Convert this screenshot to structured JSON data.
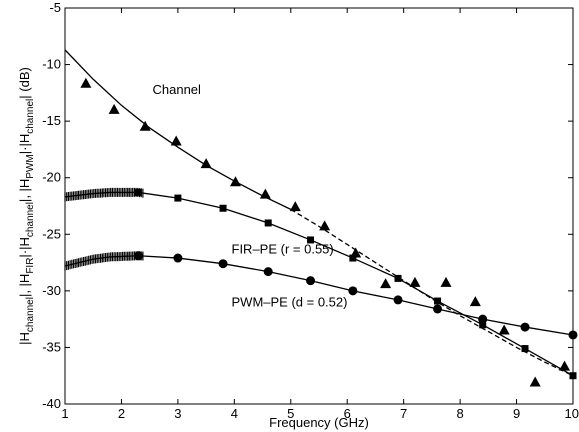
{
  "chart_data": {
    "type": "line",
    "xlabel": "Frequency (GHz)",
    "ylabel_parts": [
      "|H",
      "channel",
      "|, |H",
      "FIR",
      "|·|H",
      "channel",
      "|, |H",
      "PWM",
      "|·|H",
      "channel",
      "|  (dB)"
    ],
    "xlim": [
      1,
      10
    ],
    "ylim": [
      -40,
      -5
    ],
    "xticks": [
      "1",
      "2",
      "3",
      "4",
      "5",
      "6",
      "7",
      "8",
      "9",
      "10"
    ],
    "yticks": [
      "-5",
      "-10",
      "-15",
      "-20",
      "-25",
      "-30",
      "-35",
      "-40"
    ],
    "grid": false,
    "annotations": [
      {
        "text": "Channel",
        "x": 2.55,
        "y": -12.6
      },
      {
        "text": "FIR–PE (r = 0.55)",
        "x": 3.95,
        "y": -26.7
      },
      {
        "text": "PWM–PE (d = 0.52)",
        "x": 3.95,
        "y": -31.4
      }
    ],
    "series": [
      {
        "style": "solid-line",
        "x": [
          1,
          1.5,
          2,
          2.5,
          3,
          3.5,
          4,
          4.5,
          5
        ],
        "y": [
          -8.7,
          -11.3,
          -13.6,
          -15.6,
          -17.3,
          -18.9,
          -20.3,
          -21.6,
          -22.8
        ]
      },
      {
        "style": "dashed-line",
        "x": [
          5,
          5.5,
          6,
          6.5,
          7,
          7.5,
          8,
          8.5,
          9,
          9.5,
          10
        ],
        "y": [
          -22.8,
          -24.3,
          -25.9,
          -27.5,
          -29.1,
          -30.7,
          -32.2,
          -33.6,
          -35.0,
          -36.3,
          -37.5
        ]
      },
      {
        "style": "triangle-markers",
        "x": [
          1.37,
          1.87,
          2.42,
          2.97,
          3.5,
          4.02,
          4.55,
          5.08,
          5.6,
          6.15,
          6.68,
          7.2,
          7.75,
          8.27,
          8.78,
          9.33,
          9.85
        ],
        "y": [
          -11.7,
          -14.0,
          -15.5,
          -16.8,
          -18.8,
          -20.4,
          -21.5,
          -22.6,
          -24.3,
          -26.7,
          -29.4,
          -29.3,
          -29.3,
          -31.0,
          -33.5,
          -38.1,
          -36.7
        ]
      },
      {
        "style": "line-with-squares",
        "x": [
          1,
          1.5,
          1.8,
          2.3,
          3.0,
          3.8,
          4.6,
          5.35,
          6.1,
          6.9,
          7.6,
          8.4,
          9.15,
          10
        ],
        "y": [
          -21.7,
          -21.4,
          -21.3,
          -21.3,
          -21.8,
          -22.7,
          -24.0,
          -25.5,
          -27.1,
          -28.9,
          -30.9,
          -33.0,
          -35.1,
          -37.5
        ],
        "markers_x": [
          2.3,
          3.0,
          3.8,
          4.6,
          5.35,
          6.1,
          6.9,
          7.6,
          8.4,
          9.15,
          10
        ],
        "jagged_start": 1.0,
        "jagged_end": 2.4
      },
      {
        "style": "line-with-circles",
        "x": [
          1,
          1.5,
          1.8,
          2.3,
          3.0,
          3.8,
          4.6,
          5.35,
          6.1,
          6.9,
          7.6,
          8.4,
          9.15,
          10
        ],
        "y": [
          -27.8,
          -27.2,
          -27.0,
          -26.9,
          -27.1,
          -27.6,
          -28.3,
          -29.1,
          -30.0,
          -30.8,
          -31.6,
          -32.5,
          -33.2,
          -33.9
        ],
        "markers_x": [
          2.3,
          3.0,
          3.8,
          4.6,
          5.35,
          6.1,
          6.9,
          7.6,
          8.4,
          9.15,
          10
        ],
        "jagged_start": 1.0,
        "jagged_end": 2.4
      }
    ]
  }
}
